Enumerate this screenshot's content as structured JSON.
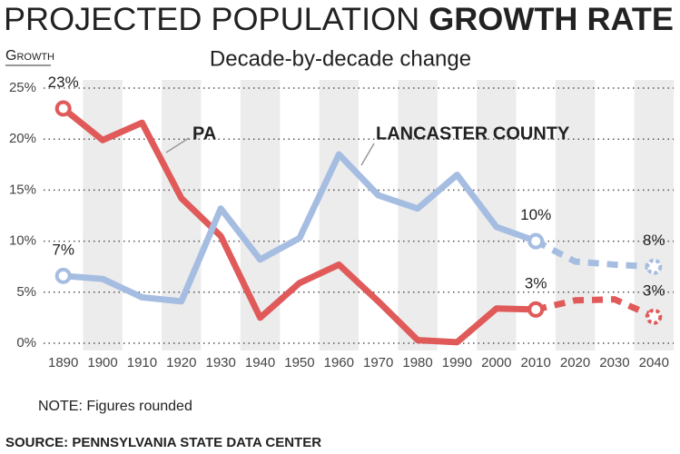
{
  "chart_data": {
    "type": "line",
    "title": "PROJECTED POPULATION",
    "title_emphasis": "GROWTH RATE",
    "subtitle": "Decade-by-decade change",
    "y_label": "Growth",
    "note": "NOTE: Figures rounded",
    "source": "SOURCE:  PENNSYLVANIA STATE DATA CENTER",
    "categories": [
      "1890",
      "1900",
      "1910",
      "1920",
      "1930",
      "1940",
      "1950",
      "1960",
      "1970",
      "1980",
      "1990",
      "2000",
      "2010",
      "2020",
      "2030",
      "2040"
    ],
    "projection_from": "2010",
    "series": [
      {
        "name": "PA",
        "color": "#e05a5a",
        "values": [
          23,
          19.9,
          21.6,
          14.2,
          10.5,
          2.5,
          5.9,
          7.7,
          4.1,
          0.3,
          0.1,
          3.4,
          3.3,
          4.2,
          4.3,
          2.6
        ],
        "value_labels": [
          "23%",
          null,
          null,
          null,
          null,
          null,
          null,
          null,
          null,
          null,
          null,
          null,
          "3%",
          null,
          null,
          "3%"
        ]
      },
      {
        "name": "LANCASTER COUNTY",
        "color": "#a6bde2",
        "values": [
          6.6,
          6.3,
          4.5,
          4.1,
          13.2,
          8.2,
          10.3,
          18.5,
          14.5,
          13.2,
          16.5,
          11.4,
          10,
          8,
          7.7,
          7.5
        ],
        "value_labels": [
          "7%",
          null,
          null,
          null,
          null,
          null,
          null,
          null,
          null,
          null,
          null,
          null,
          "10%",
          null,
          null,
          "8%"
        ]
      }
    ],
    "ylim": [
      0,
      25
    ],
    "yticks": [
      {
        "value": 0,
        "label": "0%"
      },
      {
        "value": 5,
        "label": "5%"
      },
      {
        "value": 10,
        "label": "10%"
      },
      {
        "value": 15,
        "label": "15%"
      },
      {
        "value": 20,
        "label": "20%"
      },
      {
        "value": 25,
        "label": "25%"
      }
    ],
    "grid": true
  }
}
